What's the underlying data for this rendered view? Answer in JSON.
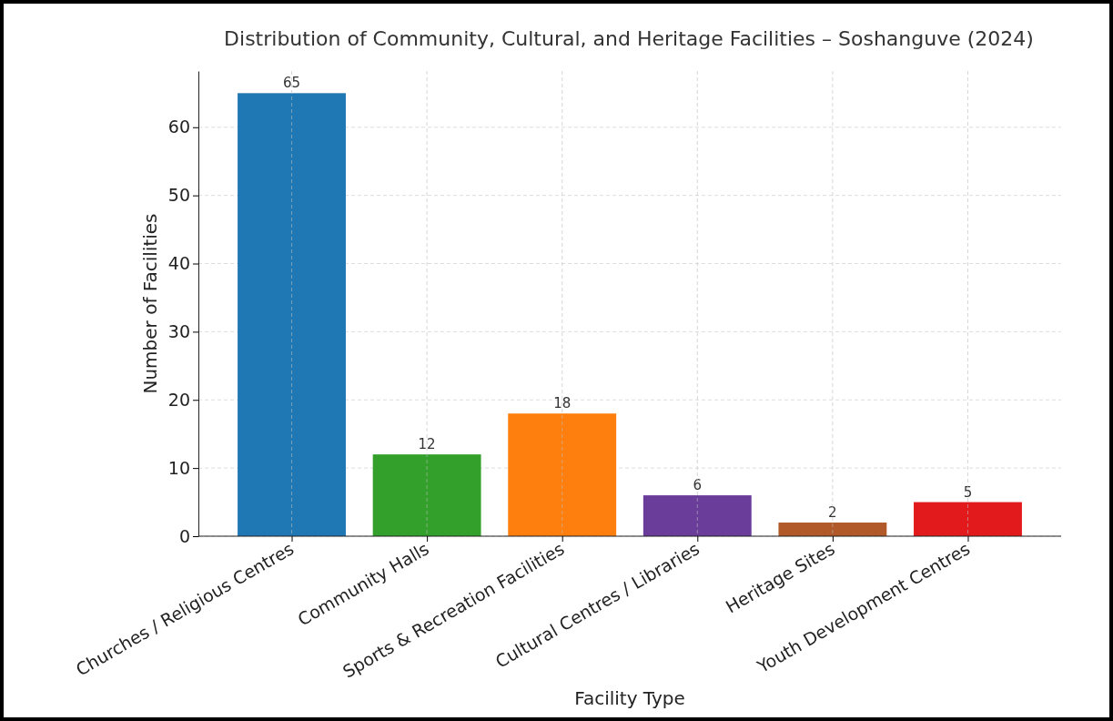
{
  "chart_data": {
    "type": "bar",
    "title": "Distribution of Community, Cultural, and Heritage Facilities – Soshanguve (2024)",
    "xlabel": "Facility Type",
    "ylabel": "Number of Facilities",
    "categories": [
      "Churches / Religious Centres",
      "Community Halls",
      "Sports & Recreation Facilities",
      "Cultural Centres / Libraries",
      "Heritage Sites",
      "Youth Development Centres"
    ],
    "values": [
      65,
      12,
      18,
      6,
      2,
      5
    ],
    "colors": [
      "#1f77b4",
      "#33a02c",
      "#ff7f0e",
      "#6a3d9a",
      "#b15928",
      "#e31a1c"
    ],
    "ylim": [
      0,
      68.25
    ],
    "yticks": [
      0,
      10,
      20,
      30,
      40,
      50,
      60
    ],
    "grid": true,
    "data_labels": true
  }
}
